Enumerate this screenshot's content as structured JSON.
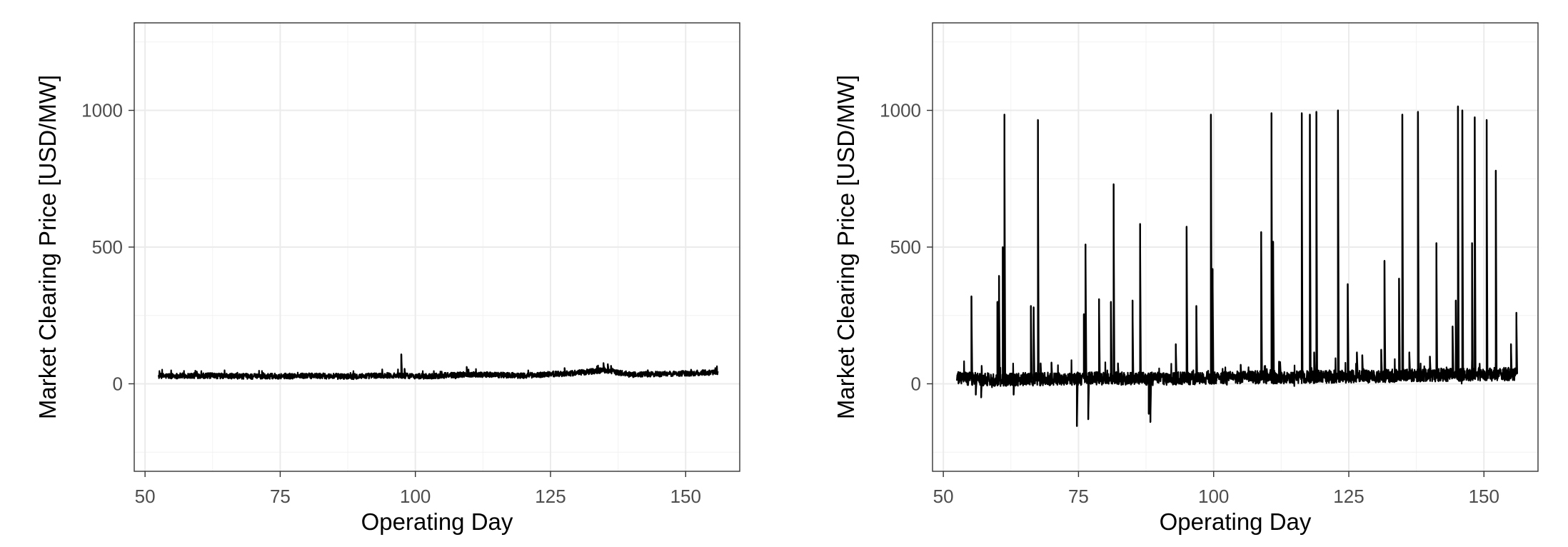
{
  "chart_data": [
    {
      "type": "line",
      "title": "",
      "xlabel": "Operating Day",
      "ylabel": "Market Clearing Price [USD/MW]",
      "xlim": [
        48,
        160
      ],
      "ylim": [
        -320,
        1320
      ],
      "x_ticks": [
        "50",
        "75",
        "100",
        "125",
        "150"
      ],
      "y_ticks": [
        "0",
        "500",
        "1000"
      ],
      "grid": true,
      "line_color": "#000000",
      "x_range": [
        52.5,
        156
      ],
      "baseline": [
        [
          52.5,
          28
        ],
        [
          60,
          30
        ],
        [
          70,
          27
        ],
        [
          80,
          29
        ],
        [
          88,
          27
        ],
        [
          95,
          31
        ],
        [
          102,
          27
        ],
        [
          110,
          35
        ],
        [
          120,
          30
        ],
        [
          130,
          40
        ],
        [
          135,
          50
        ],
        [
          140,
          33
        ],
        [
          150,
          38
        ],
        [
          156,
          42
        ]
      ],
      "noise": 10,
      "spikes": [
        [
          59.3,
          48
        ],
        [
          76,
          38
        ],
        [
          88,
          40
        ],
        [
          97.4,
          108
        ],
        [
          98,
          55
        ],
        [
          109.5,
          62
        ],
        [
          127.6,
          58
        ],
        [
          133.6,
          64
        ],
        [
          134.8,
          76
        ],
        [
          135.6,
          72
        ],
        [
          136.2,
          66
        ],
        [
          143,
          50
        ],
        [
          151,
          52
        ],
        [
          155.5,
          58
        ]
      ]
    },
    {
      "type": "line",
      "title": "",
      "xlabel": "Operating Day",
      "ylabel": "Market Clearing Price [USD/MW]",
      "xlim": [
        48,
        160
      ],
      "ylim": [
        -320,
        1320
      ],
      "x_ticks": [
        "50",
        "75",
        "100",
        "125",
        "150"
      ],
      "y_ticks": [
        "0",
        "500",
        "1000"
      ],
      "grid": true,
      "line_color": "#000000",
      "x_range": [
        52.5,
        156
      ],
      "baseline": [
        [
          52.5,
          20
        ],
        [
          60,
          15
        ],
        [
          70,
          18
        ],
        [
          80,
          20
        ],
        [
          90,
          18
        ],
        [
          100,
          22
        ],
        [
          110,
          24
        ],
        [
          120,
          26
        ],
        [
          130,
          28
        ],
        [
          140,
          32
        ],
        [
          150,
          34
        ],
        [
          156,
          36
        ]
      ],
      "noise": 24,
      "spikes": [
        [
          55.2,
          320
        ],
        [
          56,
          -40
        ],
        [
          57,
          -50
        ],
        [
          60,
          300
        ],
        [
          60.3,
          395
        ],
        [
          61,
          500
        ],
        [
          61.3,
          985
        ],
        [
          63,
          -40
        ],
        [
          66.2,
          285
        ],
        [
          66.7,
          280
        ],
        [
          67.5,
          965
        ],
        [
          68,
          75
        ],
        [
          70,
          78
        ],
        [
          74.7,
          -155
        ],
        [
          76,
          255
        ],
        [
          76.3,
          510
        ],
        [
          76.8,
          -130
        ],
        [
          78.8,
          310
        ],
        [
          81,
          300
        ],
        [
          81.5,
          730
        ],
        [
          82.3,
          75
        ],
        [
          85,
          305
        ],
        [
          86.4,
          585
        ],
        [
          88,
          -110
        ],
        [
          88.3,
          -140
        ],
        [
          93,
          145
        ],
        [
          95,
          575
        ],
        [
          96.8,
          285
        ],
        [
          99.5,
          985
        ],
        [
          99.8,
          420
        ],
        [
          105,
          70
        ],
        [
          108.8,
          555
        ],
        [
          110.7,
          990
        ],
        [
          111,
          520
        ],
        [
          112.3,
          80
        ],
        [
          116.3,
          990
        ],
        [
          117.8,
          985
        ],
        [
          118.6,
          115
        ],
        [
          119,
          995
        ],
        [
          123,
          1000
        ],
        [
          124.8,
          365
        ],
        [
          126.5,
          115
        ],
        [
          127.5,
          105
        ],
        [
          131,
          125
        ],
        [
          131.6,
          450
        ],
        [
          134.3,
          385
        ],
        [
          134.9,
          985
        ],
        [
          136.2,
          115
        ],
        [
          137.8,
          995
        ],
        [
          140,
          100
        ],
        [
          141.2,
          515
        ],
        [
          144.2,
          210
        ],
        [
          144.8,
          305
        ],
        [
          145.2,
          1015
        ],
        [
          146,
          1000
        ],
        [
          147.8,
          515
        ],
        [
          148.3,
          975
        ],
        [
          150.5,
          965
        ],
        [
          152.2,
          780
        ],
        [
          155,
          145
        ],
        [
          156,
          260
        ]
      ]
    }
  ]
}
